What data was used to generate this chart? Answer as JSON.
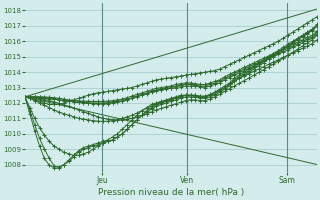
{
  "title": "",
  "xlabel": "Pression niveau de la mer( hPa )",
  "bg_color": "#d4ecec",
  "grid_color": "#a0c8c8",
  "line_color": "#2d6a2d",
  "marker_color": "#2d6a2d",
  "ylim": [
    1007.5,
    1018.5
  ],
  "yticks": [
    1008,
    1009,
    1010,
    1011,
    1012,
    1013,
    1014,
    1015,
    1016,
    1017,
    1018
  ],
  "day_labels": [
    "Jeu",
    "Ven",
    "Sam"
  ],
  "day_positions": [
    0.265,
    0.555,
    0.895
  ],
  "n_steps": 61,
  "series": [
    [
      1012.4,
      1012.3,
      1012.2,
      1012.1,
      1012.0,
      1011.9,
      1011.9,
      1011.9,
      1012.0,
      1012.1,
      1012.2,
      1012.3,
      1012.4,
      1012.5,
      1012.6,
      1012.65,
      1012.7,
      1012.75,
      1012.8,
      1012.85,
      1012.9,
      1012.95,
      1013.0,
      1013.1,
      1013.2,
      1013.3,
      1013.4,
      1013.5,
      1013.55,
      1013.6,
      1013.65,
      1013.7,
      1013.75,
      1013.8,
      1013.85,
      1013.9,
      1013.95,
      1014.0,
      1014.05,
      1014.1,
      1014.2,
      1014.35,
      1014.5,
      1014.65,
      1014.8,
      1014.95,
      1015.1,
      1015.25,
      1015.4,
      1015.55,
      1015.7,
      1015.85,
      1016.0,
      1016.2,
      1016.4,
      1016.6,
      1016.8,
      1017.0,
      1017.2,
      1017.4,
      1017.6
    ],
    [
      1012.4,
      1011.7,
      1011.0,
      1010.4,
      1009.9,
      1009.5,
      1009.2,
      1009.0,
      1008.8,
      1008.7,
      1008.6,
      1008.6,
      1008.7,
      1008.8,
      1009.0,
      1009.2,
      1009.4,
      1009.5,
      1009.6,
      1009.8,
      1010.0,
      1010.3,
      1010.6,
      1010.9,
      1011.2,
      1011.5,
      1011.7,
      1011.9,
      1012.0,
      1012.1,
      1012.2,
      1012.3,
      1012.4,
      1012.5,
      1012.5,
      1012.5,
      1012.4,
      1012.4,
      1012.5,
      1012.6,
      1012.8,
      1013.0,
      1013.2,
      1013.5,
      1013.7,
      1013.9,
      1014.1,
      1014.3,
      1014.5,
      1014.7,
      1014.9,
      1015.1,
      1015.3,
      1015.5,
      1015.7,
      1015.9,
      1016.1,
      1016.3,
      1016.5,
      1016.7,
      1017.0
    ],
    [
      1012.4,
      1011.5,
      1010.6,
      1009.7,
      1009.0,
      1008.4,
      1007.9,
      1007.85,
      1008.0,
      1008.2,
      1008.5,
      1008.8,
      1009.0,
      1009.1,
      1009.2,
      1009.3,
      1009.4,
      1009.5,
      1009.6,
      1009.8,
      1010.0,
      1010.3,
      1010.6,
      1010.9,
      1011.2,
      1011.4,
      1011.6,
      1011.8,
      1011.9,
      1012.0,
      1012.1,
      1012.2,
      1012.3,
      1012.4,
      1012.4,
      1012.4,
      1012.3,
      1012.3,
      1012.4,
      1012.5,
      1012.7,
      1012.9,
      1013.1,
      1013.4,
      1013.6,
      1013.8,
      1014.0,
      1014.2,
      1014.4,
      1014.6,
      1014.85,
      1015.05,
      1015.25,
      1015.5,
      1015.7,
      1015.95,
      1016.15,
      1016.35,
      1016.55,
      1016.75,
      1017.0
    ],
    [
      1012.4,
      1011.3,
      1010.2,
      1009.2,
      1008.4,
      1007.95,
      1007.8,
      1007.75,
      1008.0,
      1008.3,
      1008.6,
      1008.9,
      1009.1,
      1009.2,
      1009.3,
      1009.4,
      1009.5,
      1009.6,
      1009.8,
      1010.0,
      1010.3,
      1010.6,
      1010.9,
      1011.2,
      1011.5,
      1011.7,
      1011.9,
      1012.0,
      1012.1,
      1012.2,
      1012.3,
      1012.4,
      1012.5,
      1012.5,
      1012.5,
      1012.45,
      1012.4,
      1012.4,
      1012.5,
      1012.7,
      1012.9,
      1013.1,
      1013.3,
      1013.6,
      1013.8,
      1014.0,
      1014.2,
      1014.4,
      1014.6,
      1014.8,
      1015.0,
      1015.2,
      1015.4,
      1015.6,
      1015.8,
      1016.0,
      1016.2,
      1016.4,
      1016.6,
      1016.8,
      1017.1
    ],
    [
      1012.4,
      1012.3,
      1012.15,
      1012.0,
      1011.85,
      1011.7,
      1011.55,
      1011.4,
      1011.3,
      1011.2,
      1011.1,
      1011.0,
      1010.95,
      1010.9,
      1010.85,
      1010.82,
      1010.8,
      1010.82,
      1010.85,
      1010.9,
      1011.0,
      1011.1,
      1011.2,
      1011.35,
      1011.5,
      1011.65,
      1011.8,
      1011.95,
      1012.05,
      1012.15,
      1012.25,
      1012.35,
      1012.45,
      1012.5,
      1012.5,
      1012.5,
      1012.45,
      1012.45,
      1012.55,
      1012.7,
      1012.85,
      1013.0,
      1013.2,
      1013.4,
      1013.6,
      1013.75,
      1013.9,
      1014.05,
      1014.2,
      1014.35,
      1014.5,
      1014.65,
      1014.8,
      1014.95,
      1015.1,
      1015.25,
      1015.4,
      1015.55,
      1015.7,
      1015.85,
      1016.1
    ],
    [
      1012.4,
      1012.38,
      1012.36,
      1012.34,
      1012.32,
      1012.28,
      1012.24,
      1012.2,
      1012.16,
      1012.12,
      1012.08,
      1012.04,
      1012.0,
      1011.98,
      1011.96,
      1011.95,
      1011.94,
      1011.96,
      1012.0,
      1012.05,
      1012.1,
      1012.2,
      1012.3,
      1012.4,
      1012.5,
      1012.6,
      1012.7,
      1012.8,
      1012.85,
      1012.9,
      1012.95,
      1013.0,
      1013.05,
      1013.1,
      1013.1,
      1013.1,
      1013.05,
      1013.0,
      1013.1,
      1013.2,
      1013.3,
      1013.5,
      1013.65,
      1013.8,
      1013.95,
      1014.1,
      1014.25,
      1014.4,
      1014.55,
      1014.7,
      1014.85,
      1015.0,
      1015.15,
      1015.3,
      1015.45,
      1015.6,
      1015.75,
      1015.9,
      1016.05,
      1016.2,
      1016.5
    ],
    [
      1012.4,
      1012.4,
      1012.4,
      1012.38,
      1012.35,
      1012.3,
      1012.25,
      1012.2,
      1012.15,
      1012.1,
      1012.08,
      1012.05,
      1012.03,
      1012.02,
      1012.0,
      1012.0,
      1012.0,
      1012.02,
      1012.05,
      1012.1,
      1012.15,
      1012.25,
      1012.35,
      1012.45,
      1012.55,
      1012.65,
      1012.75,
      1012.85,
      1012.9,
      1012.95,
      1013.0,
      1013.1,
      1013.15,
      1013.2,
      1013.2,
      1013.15,
      1013.1,
      1013.1,
      1013.2,
      1013.3,
      1013.4,
      1013.6,
      1013.75,
      1013.9,
      1014.05,
      1014.2,
      1014.35,
      1014.5,
      1014.65,
      1014.8,
      1014.95,
      1015.1,
      1015.25,
      1015.4,
      1015.55,
      1015.7,
      1015.85,
      1016.0,
      1016.15,
      1016.3,
      1016.6
    ],
    [
      1012.4,
      1012.4,
      1012.4,
      1012.4,
      1012.39,
      1012.37,
      1012.34,
      1012.3,
      1012.25,
      1012.2,
      1012.17,
      1012.14,
      1012.12,
      1012.11,
      1012.1,
      1012.1,
      1012.1,
      1012.12,
      1012.15,
      1012.2,
      1012.25,
      1012.35,
      1012.45,
      1012.55,
      1012.65,
      1012.75,
      1012.85,
      1012.95,
      1013.0,
      1013.05,
      1013.1,
      1013.2,
      1013.25,
      1013.3,
      1013.3,
      1013.25,
      1013.2,
      1013.2,
      1013.3,
      1013.4,
      1013.5,
      1013.7,
      1013.85,
      1014.0,
      1014.15,
      1014.3,
      1014.45,
      1014.6,
      1014.75,
      1014.9,
      1015.05,
      1015.2,
      1015.35,
      1015.5,
      1015.65,
      1015.8,
      1015.95,
      1016.1,
      1016.25,
      1016.4,
      1016.7
    ],
    [
      1012.4,
      1012.37,
      1012.33,
      1012.28,
      1012.22,
      1012.15,
      1012.07,
      1011.98,
      1011.88,
      1011.78,
      1011.67,
      1011.56,
      1011.44,
      1011.32,
      1011.2,
      1011.1,
      1011.0,
      1010.95,
      1010.92,
      1010.9,
      1010.9,
      1010.95,
      1011.02,
      1011.1,
      1011.2,
      1011.3,
      1011.42,
      1011.55,
      1011.65,
      1011.75,
      1011.85,
      1011.95,
      1012.05,
      1012.15,
      1012.2,
      1012.2,
      1012.15,
      1012.15,
      1012.25,
      1012.4,
      1012.55,
      1012.75,
      1012.92,
      1013.1,
      1013.28,
      1013.45,
      1013.62,
      1013.8,
      1013.98,
      1014.16,
      1014.34,
      1014.52,
      1014.7,
      1014.9,
      1015.1,
      1015.3,
      1015.5,
      1015.7,
      1015.9,
      1016.1,
      1016.4
    ]
  ],
  "straight_series": [
    [
      1012.4,
      1018.1
    ],
    [
      1012.4,
      1008.0
    ]
  ]
}
